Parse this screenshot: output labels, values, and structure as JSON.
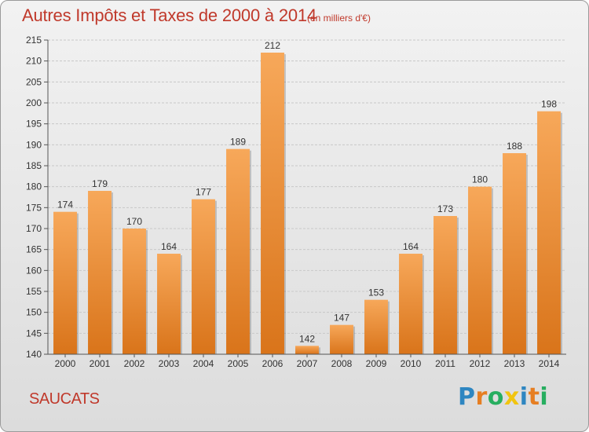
{
  "title": "Autres Impôts et Taxes de 2000 à 2014",
  "subtitle": "(en milliers d'€)",
  "commune": "SAUCATS",
  "logo": {
    "letters": [
      "P",
      "r",
      "o",
      "x",
      "i",
      "t",
      "i"
    ],
    "colors": [
      "#2e86c1",
      "#e67e22",
      "#27ae60",
      "#f1c40f",
      "#2e86c1",
      "#e67e22",
      "#27ae60"
    ]
  },
  "colors": {
    "title": "#c0392b",
    "bar_light": "#f7a85a",
    "bar_dark": "#d9741a",
    "axis": "#555555",
    "grid": "#c8c8c8"
  },
  "chart_data": {
    "type": "bar",
    "title": "Autres Impôts et Taxes de 2000 à 2014",
    "subtitle": "(en milliers d'€)",
    "xlabel": "",
    "ylabel": "",
    "categories": [
      "2000",
      "2001",
      "2002",
      "2003",
      "2004",
      "2005",
      "2006",
      "2007",
      "2008",
      "2009",
      "2010",
      "2011",
      "2012",
      "2013",
      "2014"
    ],
    "values": [
      174,
      179,
      170,
      164,
      177,
      189,
      212,
      142,
      147,
      153,
      164,
      173,
      180,
      188,
      198
    ],
    "ylim": [
      140,
      215
    ],
    "yticks": [
      140,
      145,
      150,
      155,
      160,
      165,
      170,
      175,
      180,
      185,
      190,
      195,
      200,
      205,
      210,
      215
    ],
    "grid": true,
    "data_labels": true
  }
}
